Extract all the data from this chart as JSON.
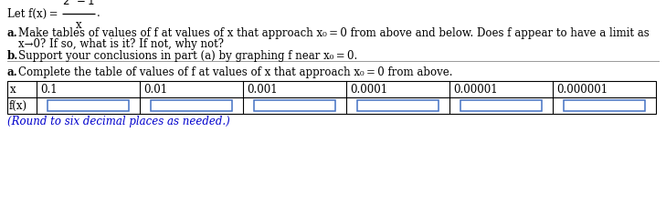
{
  "bg_color": "#ffffff",
  "text_color": "#000000",
  "note_color": "#0000cc",
  "table_border_color": "#000000",
  "cell_border_color": "#4472c4",
  "font_size": 8.5,
  "small_font_size": 8,
  "x_values": [
    "0.1",
    "0.01",
    "0.001",
    "0.0001",
    "0.00001",
    "0.000001"
  ],
  "note_text": "(Round to six decimal places as needed.)"
}
